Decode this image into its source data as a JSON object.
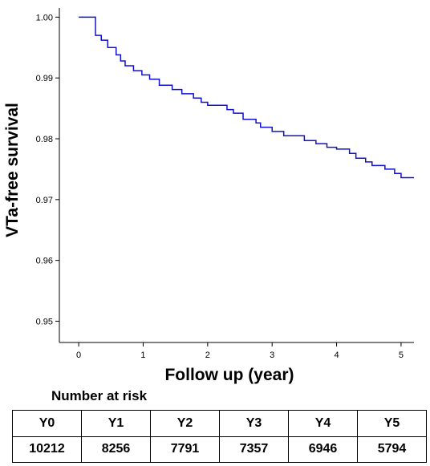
{
  "chart_data": {
    "type": "line",
    "xlabel": "Follow up (year)",
    "ylabel": "VTa-free survival",
    "xlim": [
      -0.3,
      5.2
    ],
    "ylim": [
      0.9465,
      1.0015
    ],
    "xticks": [
      0,
      1,
      2,
      3,
      4,
      5
    ],
    "xtick_labels": [
      "0",
      "1",
      "2",
      "3",
      "4",
      "5"
    ],
    "yticks": [
      0.95,
      0.96,
      0.97,
      0.98,
      0.99,
      1.0
    ],
    "ytick_labels": [
      "0.95",
      "0.96",
      "0.97",
      "0.98",
      "0.99",
      "1.00"
    ],
    "grid": false,
    "series": [
      {
        "line_color": "#1010d0",
        "step": true,
        "x": [
          0,
          0.26,
          0.26,
          0.35,
          0.35,
          0.45,
          0.45,
          0.58,
          0.58,
          0.65,
          0.65,
          0.72,
          0.72,
          0.85,
          0.85,
          0.98,
          0.98,
          1.1,
          1.1,
          1.25,
          1.25,
          1.45,
          1.45,
          1.6,
          1.6,
          1.78,
          1.78,
          1.9,
          1.9,
          2.0,
          2.0,
          2.3,
          2.3,
          2.4,
          2.4,
          2.55,
          2.55,
          2.75,
          2.75,
          2.82,
          2.82,
          3.0,
          3.0,
          3.18,
          3.18,
          3.5,
          3.5,
          3.68,
          3.68,
          3.85,
          3.85,
          4.0,
          4.0,
          4.2,
          4.2,
          4.3,
          4.3,
          4.45,
          4.45,
          4.55,
          4.55,
          4.75,
          4.75,
          4.9,
          4.9,
          5.0,
          5.0,
          5.2
        ],
        "y": [
          1.0,
          1.0,
          0.997,
          0.997,
          0.9962,
          0.9962,
          0.995,
          0.995,
          0.9938,
          0.9938,
          0.9928,
          0.9928,
          0.992,
          0.992,
          0.9912,
          0.9912,
          0.9905,
          0.9905,
          0.9898,
          0.9898,
          0.9888,
          0.9888,
          0.9881,
          0.9881,
          0.9874,
          0.9874,
          0.9867,
          0.9867,
          0.986,
          0.986,
          0.9855,
          0.9855,
          0.9848,
          0.9848,
          0.9842,
          0.9842,
          0.9832,
          0.9832,
          0.9826,
          0.9826,
          0.9819,
          0.9819,
          0.9812,
          0.9812,
          0.9805,
          0.9805,
          0.9797,
          0.9797,
          0.9792,
          0.9792,
          0.9786,
          0.9786,
          0.9783,
          0.9783,
          0.9776,
          0.9776,
          0.9768,
          0.9768,
          0.9762,
          0.9762,
          0.9756,
          0.9756,
          0.975,
          0.975,
          0.9743,
          0.9743,
          0.9736,
          0.9736
        ]
      }
    ]
  },
  "risk_table": {
    "title": "Number at risk",
    "headers": [
      "Y0",
      "Y1",
      "Y2",
      "Y3",
      "Y4",
      "Y5"
    ],
    "values": [
      "10212",
      "8256",
      "7791",
      "7357",
      "6946",
      "5794"
    ]
  }
}
